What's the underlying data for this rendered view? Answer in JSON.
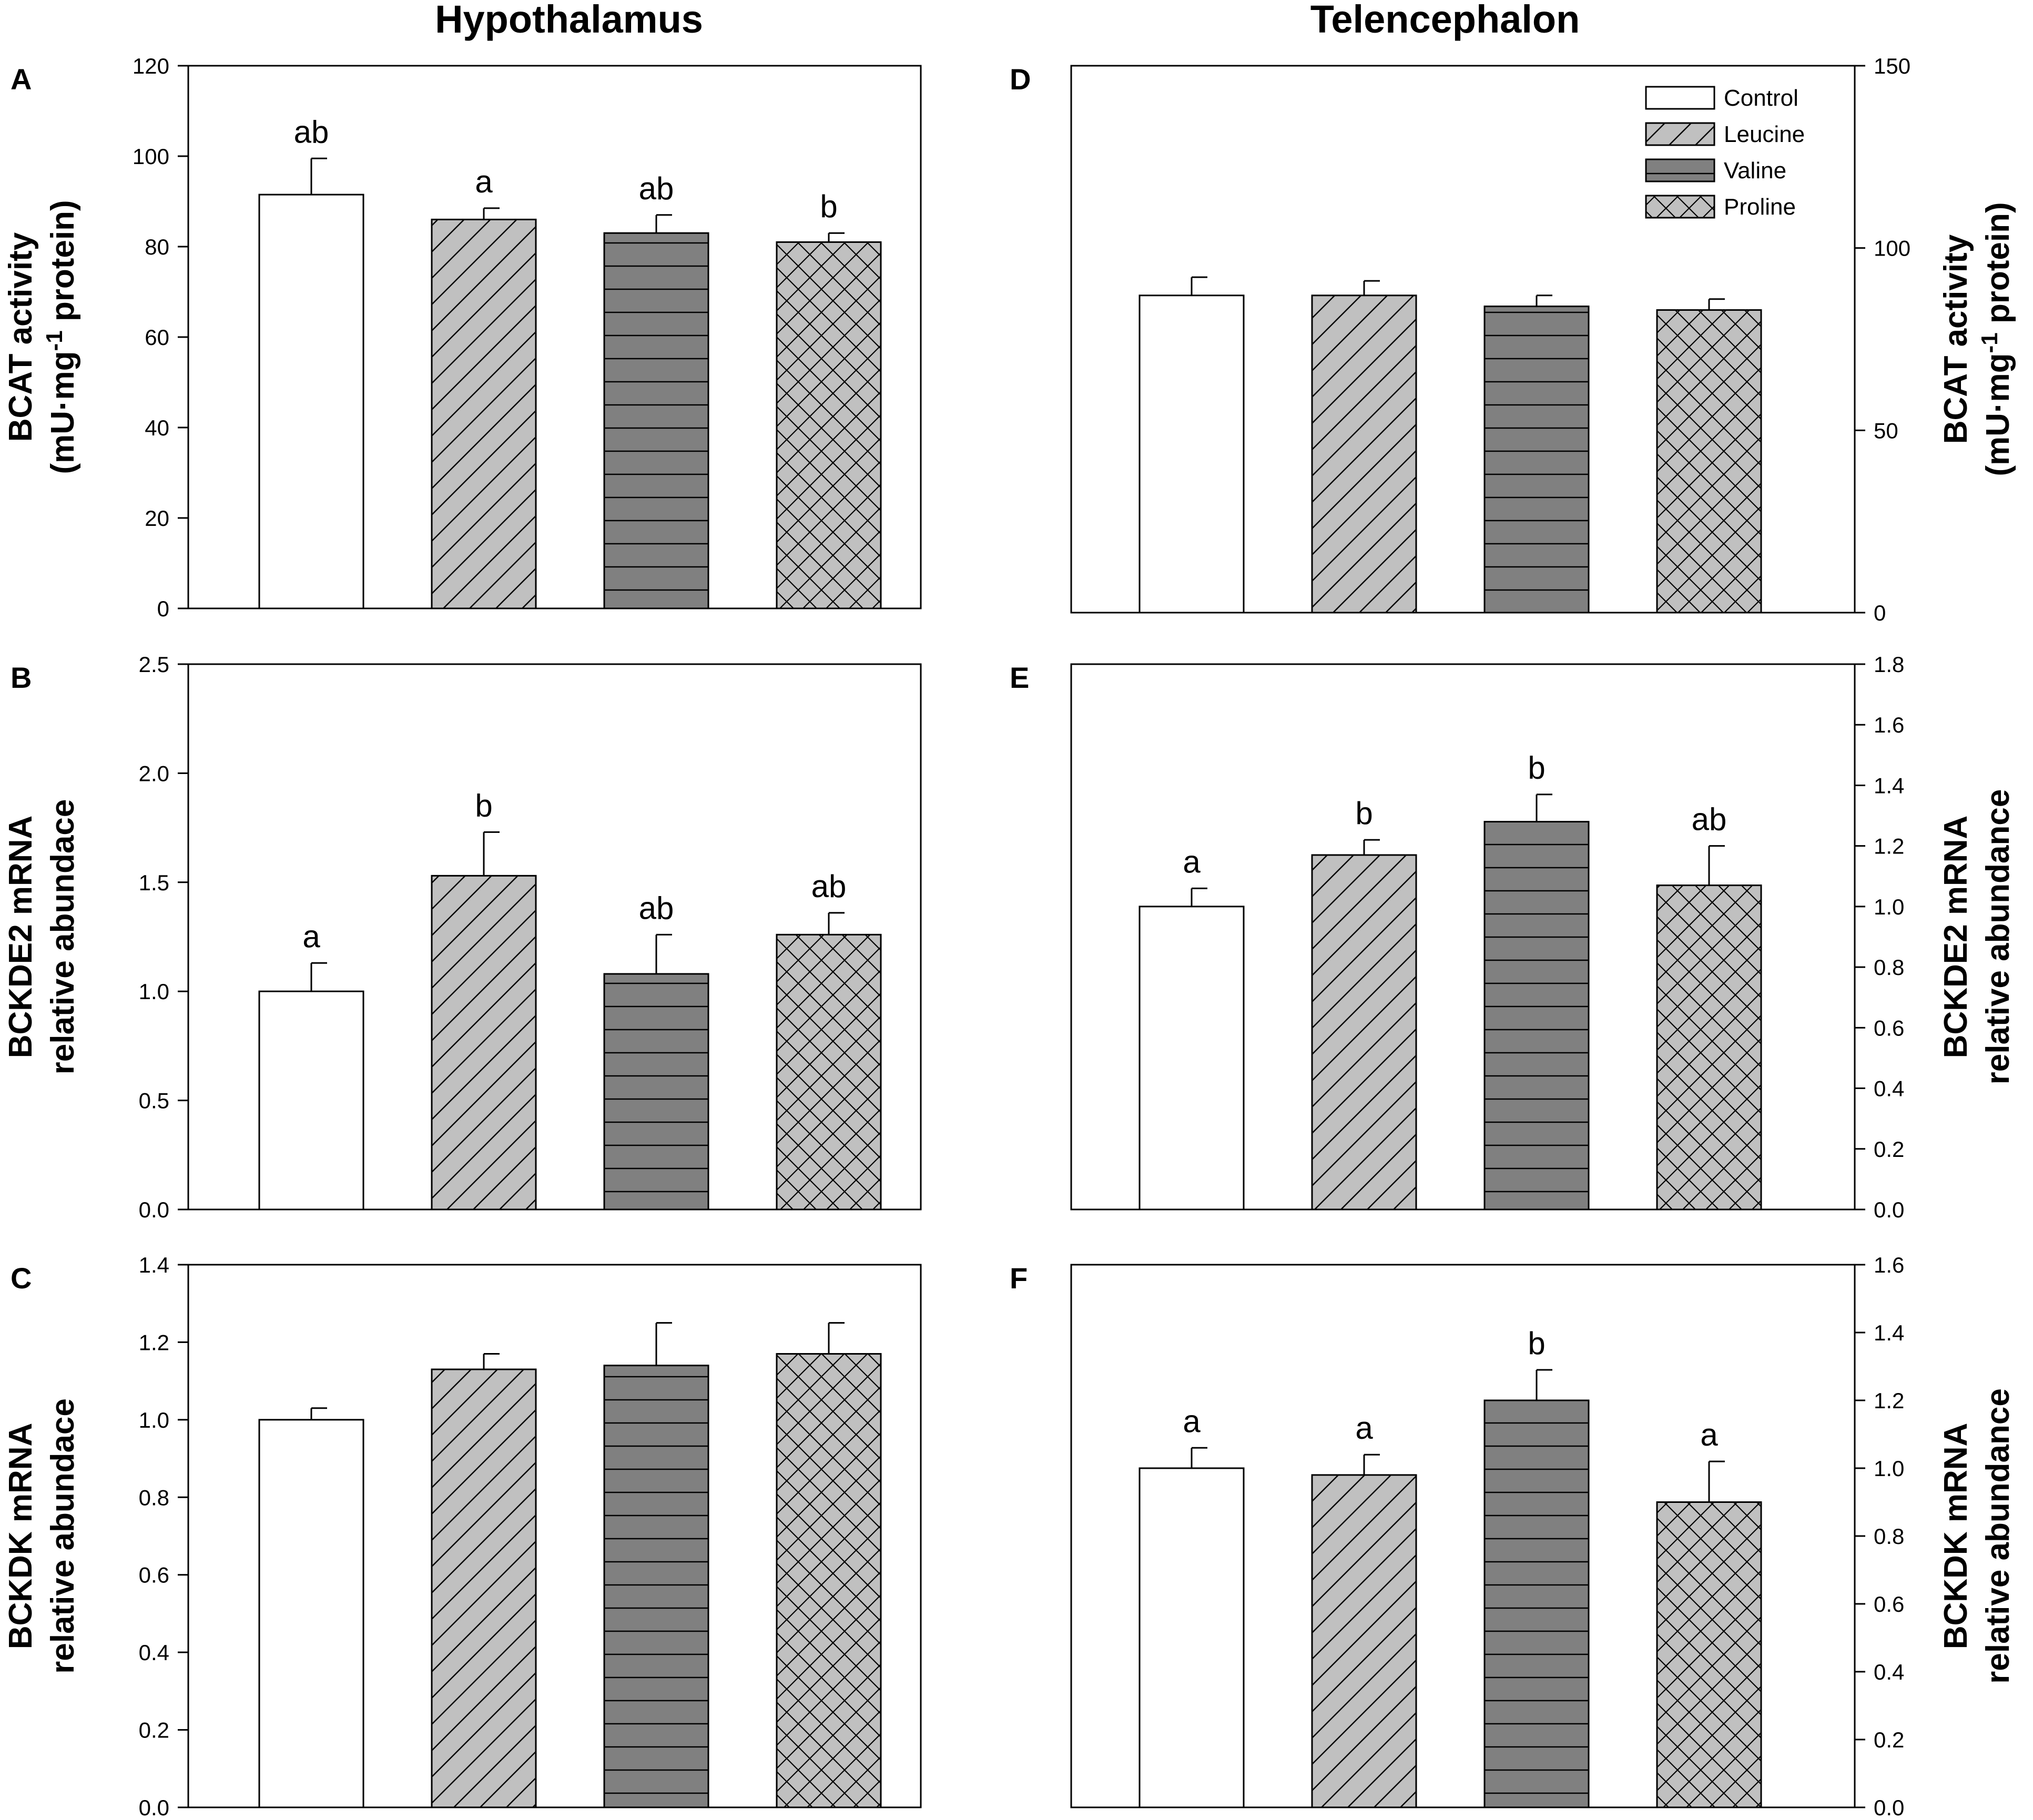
{
  "column_titles": [
    "Hypothalamus",
    "Telencephalon"
  ],
  "legend": {
    "placement": "top-right of panel D",
    "entries": [
      {
        "label": "Control",
        "pattern": "white"
      },
      {
        "label": "Leucine",
        "pattern": "diagonal"
      },
      {
        "label": "Valine",
        "pattern": "horizontal"
      },
      {
        "label": "Proline",
        "pattern": "crosshatch"
      }
    ]
  },
  "colors": {
    "control_fill": "#ffffff",
    "leucine_fill": "#c0c0c0",
    "valine_fill": "#808080",
    "proline_fill": "#c0c0c0",
    "line": "#000000"
  },
  "chart_data": [
    {
      "panel": "A",
      "type": "bar",
      "tissue": "Hypothalamus",
      "axis_side": "left",
      "ylabel_lines": [
        "BCAT activity",
        "(mU·mg",
        "-1",
        " protein)"
      ],
      "categories": [
        "Control",
        "Leucine",
        "Valine",
        "Proline"
      ],
      "values": [
        91.5,
        86,
        83,
        81
      ],
      "errors": [
        8,
        2.5,
        4,
        2
      ],
      "significance": [
        "ab",
        "a",
        "ab",
        "b"
      ],
      "ylim": [
        0,
        120
      ],
      "yticks": [
        0,
        20,
        40,
        60,
        80,
        100,
        120
      ],
      "ytick_labels": [
        "0",
        "20",
        "40",
        "60",
        "80",
        "100",
        "120"
      ]
    },
    {
      "panel": "B",
      "type": "bar",
      "tissue": "Hypothalamus",
      "axis_side": "left",
      "ylabel_lines": [
        "BCKDE2 mRNA",
        "relative abundace"
      ],
      "categories": [
        "Control",
        "Leucine",
        "Valine",
        "Proline"
      ],
      "values": [
        1.0,
        1.53,
        1.08,
        1.26
      ],
      "errors": [
        0.13,
        0.2,
        0.18,
        0.1
      ],
      "significance": [
        "a",
        "b",
        "ab",
        "ab"
      ],
      "ylim": [
        0,
        2.5
      ],
      "yticks": [
        0,
        0.5,
        1.0,
        1.5,
        2.0,
        2.5
      ],
      "ytick_labels": [
        "0.0",
        "0.5",
        "1.0",
        "1.5",
        "2.0",
        "2.5"
      ]
    },
    {
      "panel": "C",
      "type": "bar",
      "tissue": "Hypothalamus",
      "axis_side": "left",
      "ylabel_lines": [
        "BCKDK mRNA",
        "relative abundace"
      ],
      "categories": [
        "Control",
        "Leucine",
        "Valine",
        "Proline"
      ],
      "values": [
        1.0,
        1.13,
        1.14,
        1.17
      ],
      "errors": [
        0.03,
        0.04,
        0.11,
        0.08
      ],
      "significance": [
        "",
        "",
        "",
        ""
      ],
      "ylim": [
        0,
        1.4
      ],
      "yticks": [
        0,
        0.2,
        0.4,
        0.6,
        0.8,
        1.0,
        1.2,
        1.4
      ],
      "ytick_labels": [
        "0.0",
        "0.2",
        "0.4",
        "0.6",
        "0.8",
        "1.0",
        "1.2",
        "1.4"
      ]
    },
    {
      "panel": "D",
      "type": "bar",
      "tissue": "Telencephalon",
      "axis_side": "right",
      "ylabel_lines": [
        "BCAT activity",
        "(mU·mg",
        "-1",
        " protein)"
      ],
      "categories": [
        "Control",
        "Leucine",
        "Valine",
        "Proline"
      ],
      "values": [
        87,
        87,
        84,
        83
      ],
      "errors": [
        5,
        4,
        3,
        3
      ],
      "significance": [
        "",
        "",
        "",
        ""
      ],
      "ylim": [
        0,
        150
      ],
      "yticks": [
        0,
        50,
        100,
        150
      ],
      "ytick_labels": [
        "0",
        "50",
        "100",
        "150"
      ]
    },
    {
      "panel": "E",
      "type": "bar",
      "tissue": "Telencephalon",
      "axis_side": "right",
      "ylabel_lines": [
        "BCKDE2 mRNA",
        "relative abundance"
      ],
      "categories": [
        "Control",
        "Leucine",
        "Valine",
        "Proline"
      ],
      "values": [
        1.0,
        1.17,
        1.28,
        1.07
      ],
      "errors": [
        0.06,
        0.05,
        0.09,
        0.13
      ],
      "significance": [
        "a",
        "b",
        "b",
        "ab"
      ],
      "ylim": [
        0,
        1.8
      ],
      "yticks": [
        0,
        0.2,
        0.4,
        0.6,
        0.8,
        1.0,
        1.2,
        1.4,
        1.6,
        1.8
      ],
      "ytick_labels": [
        "0.0",
        "0.2",
        "0.4",
        "0.6",
        "0.8",
        "1.0",
        "1.2",
        "1.4",
        "1.6",
        "1.8"
      ]
    },
    {
      "panel": "F",
      "type": "bar",
      "tissue": "Telencephalon",
      "axis_side": "right",
      "ylabel_lines": [
        "BCKDK mRNA",
        "relative abundance"
      ],
      "categories": [
        "Control",
        "Leucine",
        "Valine",
        "Proline"
      ],
      "values": [
        1.0,
        0.98,
        1.2,
        0.9
      ],
      "errors": [
        0.06,
        0.06,
        0.09,
        0.12
      ],
      "significance": [
        "a",
        "a",
        "b",
        "a"
      ],
      "ylim": [
        0,
        1.6
      ],
      "yticks": [
        0,
        0.2,
        0.4,
        0.6,
        0.8,
        1.0,
        1.2,
        1.4,
        1.6
      ],
      "ytick_labels": [
        "0.0",
        "0.2",
        "0.4",
        "0.6",
        "0.8",
        "1.0",
        "1.2",
        "1.4",
        "1.6"
      ]
    }
  ]
}
